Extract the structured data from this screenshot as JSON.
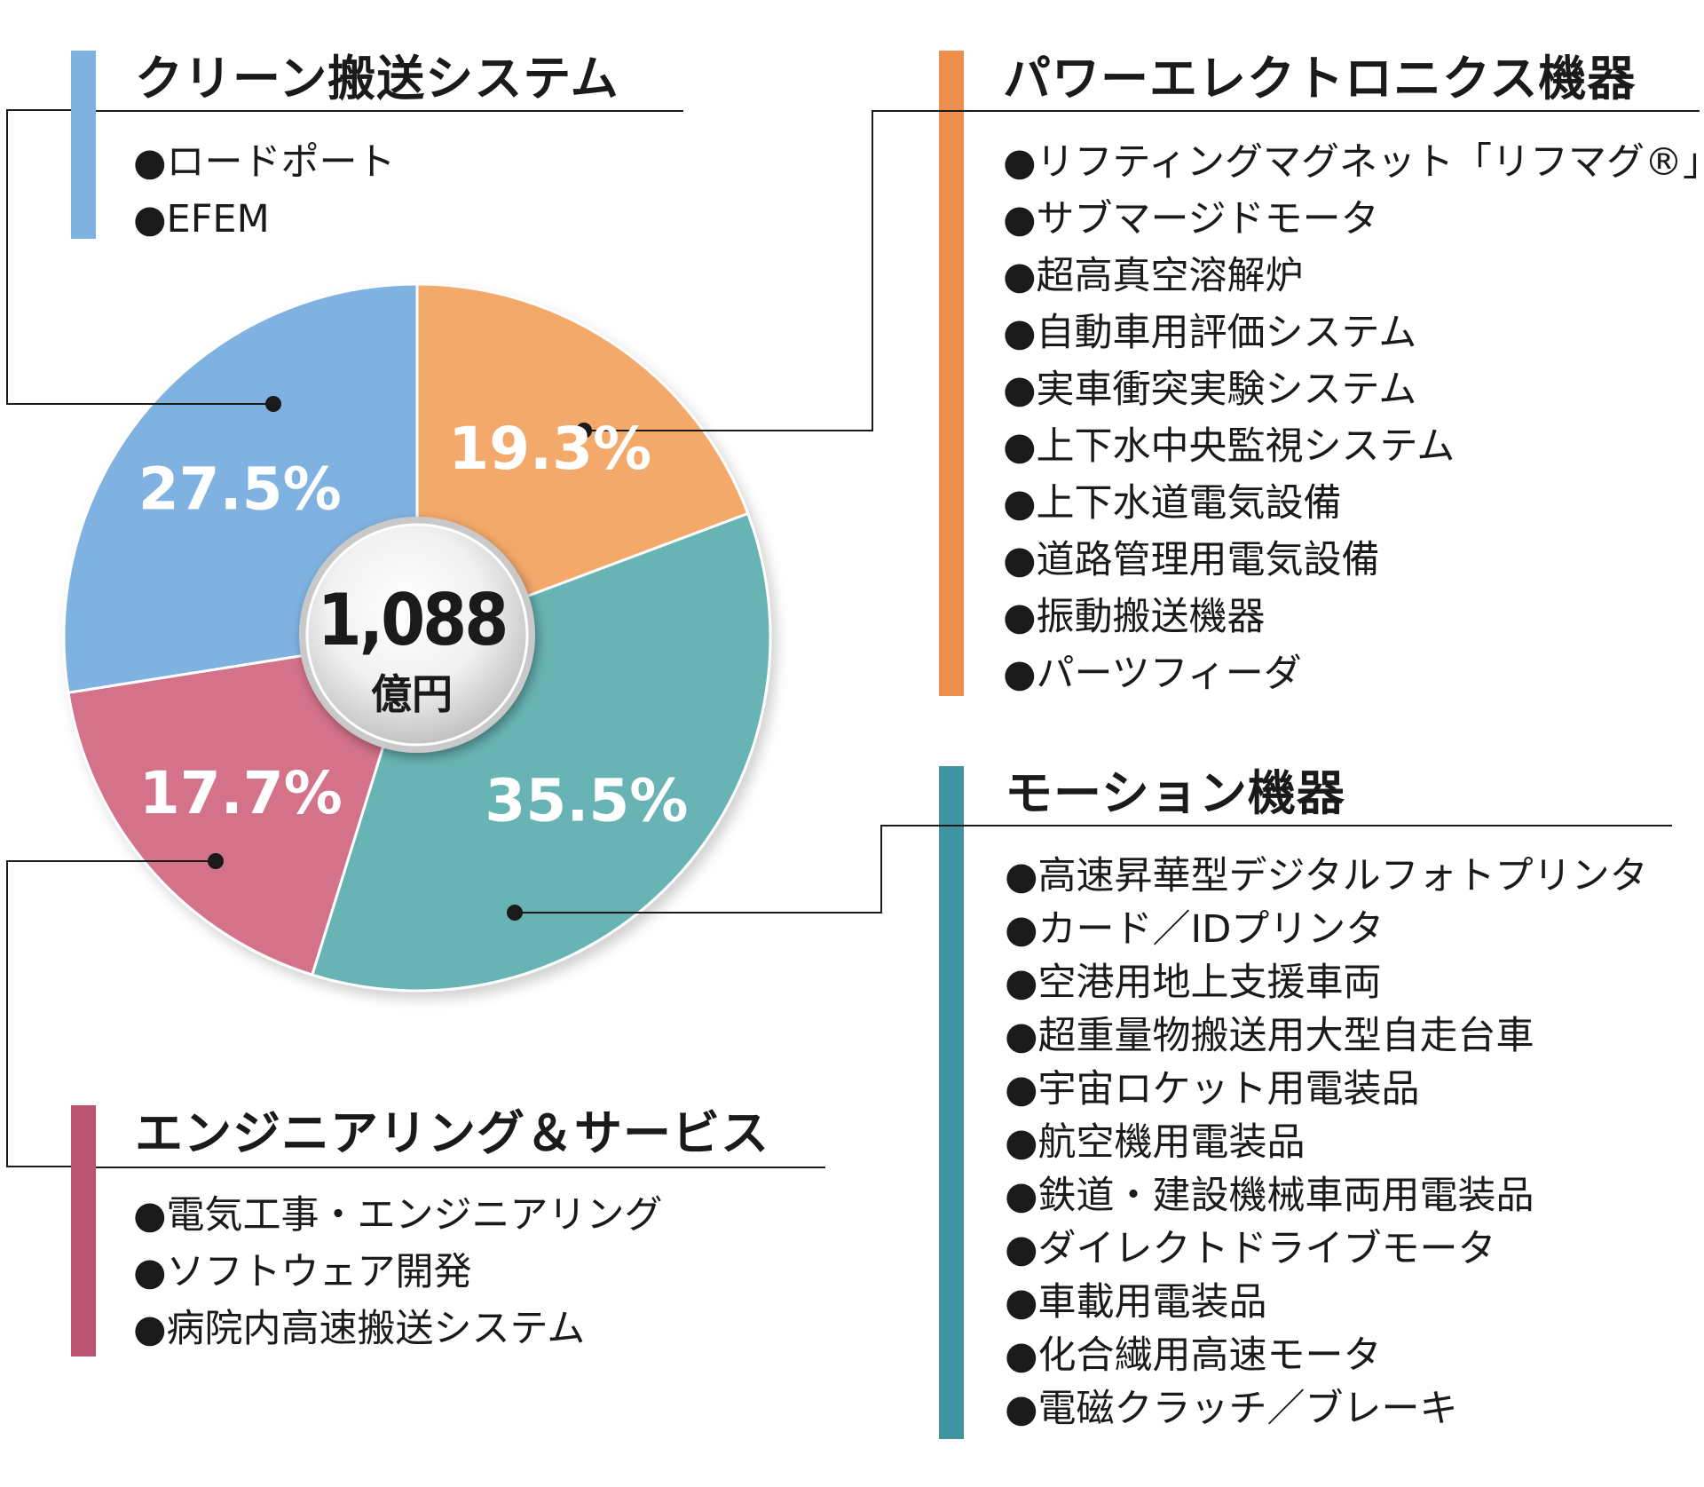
{
  "chart_data": {
    "type": "pie",
    "center_label": {
      "value": "1,088",
      "unit": "億円"
    },
    "slices": [
      {
        "name": "クリーン搬送システム",
        "value": 27.5,
        "label": "27.5%",
        "color": "#7fb2e0"
      },
      {
        "name": "パワーエレクトロニクス機器",
        "value": 19.3,
        "label": "19.3%",
        "color": "#f3a96b"
      },
      {
        "name": "モーション機器",
        "value": 35.5,
        "label": "35.5%",
        "color": "#68b3b4"
      },
      {
        "name": "エンジニアリング＆サービス",
        "value": 17.7,
        "label": "17.7%",
        "color": "#d4728a"
      }
    ]
  },
  "categories": [
    {
      "key": "clean",
      "title": "クリーン搬送システム",
      "bar_color": "#7fb2e0",
      "items": [
        "●ロードポート",
        "●EFEM"
      ]
    },
    {
      "key": "power",
      "title": "パワーエレクトロニクス機器",
      "bar_color": "#ef8f4e",
      "items": [
        "●リフティングマグネット「リフマグ®」",
        "●サブマージドモータ",
        "●超高真空溶解炉",
        "●自動車用評価システム",
        "●実車衝突実験システム",
        "●上下水中央監視システム",
        "●上下水道電気設備",
        "●道路管理用電気設備",
        "●振動搬送機器",
        "●パーツフィーダ"
      ]
    },
    {
      "key": "motion",
      "title": "モーション機器",
      "bar_color": "#3f95a0",
      "items": [
        "●高速昇華型デジタルフォトプリンタ",
        "●カード／IDプリンタ",
        "●空港用地上支援車両",
        "●超重量物搬送用大型自走台車",
        "●宇宙ロケット用電装品",
        "●航空機用電装品",
        "●鉄道・建設機械車両用電装品",
        "●ダイレクトドライブモータ",
        "●車載用電装品",
        "●化合繊用高速モータ",
        "●電磁クラッチ／ブレーキ"
      ]
    },
    {
      "key": "eng",
      "title": "エンジニアリング＆サービス",
      "bar_color": "#bb5470",
      "items": [
        "●電気工事・エンジニアリング",
        "●ソフトウェア開発",
        "●病院内高速搬送システム"
      ]
    }
  ]
}
